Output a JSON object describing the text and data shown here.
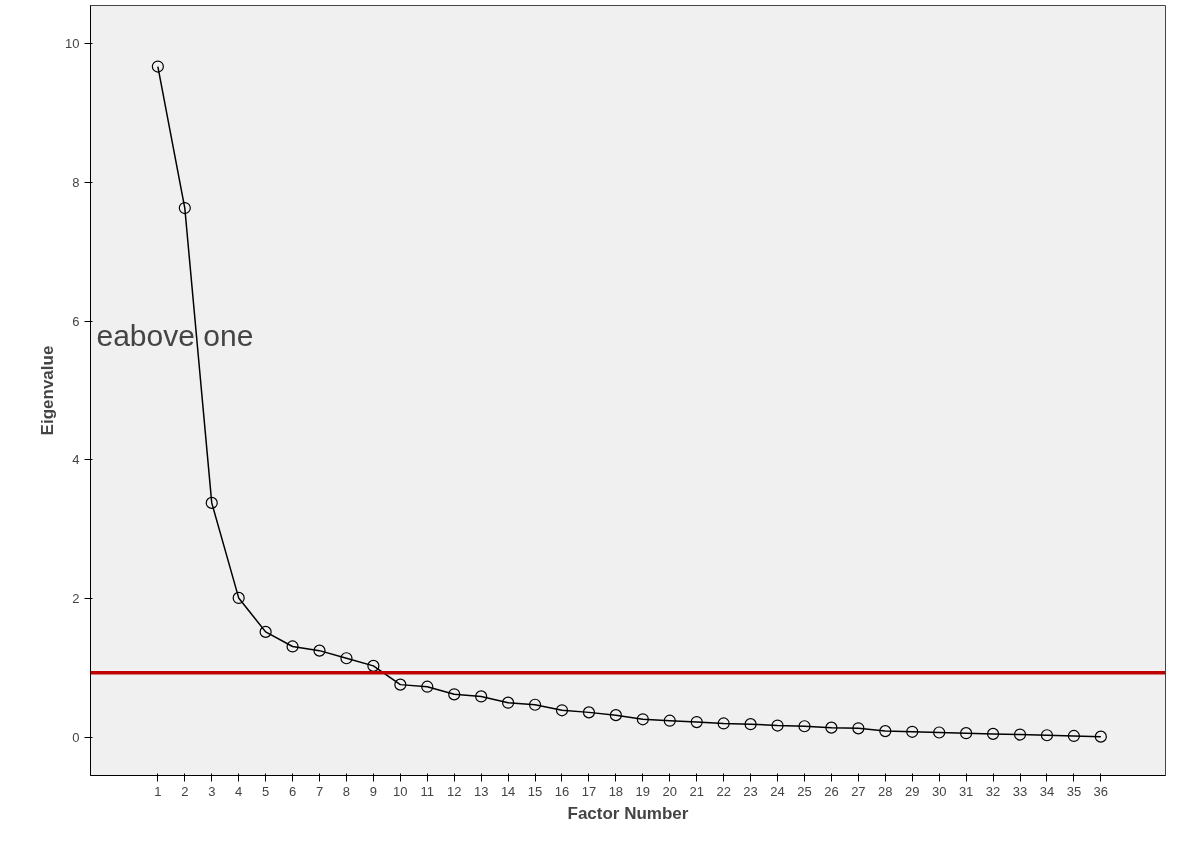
{
  "chart_data": {
    "type": "line",
    "xlabel": "Factor Number",
    "ylabel": "Eigenvalue",
    "x": [
      1,
      2,
      3,
      4,
      5,
      6,
      7,
      8,
      9,
      10,
      11,
      12,
      13,
      14,
      15,
      16,
      17,
      18,
      19,
      20,
      21,
      22,
      23,
      24,
      25,
      26,
      27,
      28,
      29,
      30,
      31,
      32,
      33,
      34,
      35,
      36
    ],
    "series": [
      {
        "color": "#000000",
        "values": [
          9.67,
          7.63,
          3.38,
          2.01,
          1.52,
          1.31,
          1.25,
          1.14,
          1.03,
          0.76,
          0.73,
          0.62,
          0.59,
          0.5,
          0.47,
          0.39,
          0.36,
          0.32,
          0.26,
          0.24,
          0.22,
          0.2,
          0.19,
          0.17,
          0.16,
          0.14,
          0.13,
          0.09,
          0.08,
          0.07,
          0.06,
          0.05,
          0.04,
          0.03,
          0.02,
          0.01
        ]
      }
    ],
    "xlim": [
      -1.5,
      38.4
    ],
    "ylim": [
      -0.55,
      10.55
    ],
    "xticks": [
      1,
      2,
      3,
      4,
      5,
      6,
      7,
      8,
      9,
      10,
      11,
      12,
      13,
      14,
      15,
      16,
      17,
      18,
      19,
      20,
      21,
      22,
      23,
      24,
      25,
      26,
      27,
      28,
      29,
      30,
      31,
      32,
      33,
      34,
      35,
      36
    ],
    "yticks": [
      0,
      2,
      4,
      6,
      8,
      10
    ],
    "ref_lines": [
      {
        "axis": "y",
        "value": 0.93,
        "color": "#c00000"
      }
    ],
    "annotations": [
      "eabove one"
    ],
    "marker": "circle",
    "line_style": "solid",
    "grid": false
  }
}
